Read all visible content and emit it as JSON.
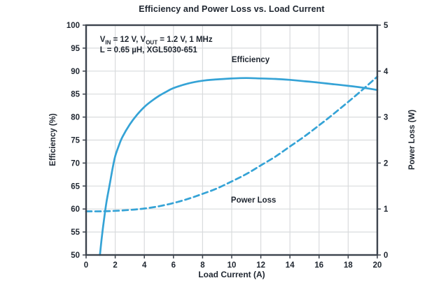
{
  "chart_data": {
    "type": "line",
    "title": "Efficiency and Power Loss vs. Load Current",
    "xlabel": "Load Current (A)",
    "ylabel_left": "Efficiency (%)",
    "ylabel_right": "Power Loss (W)",
    "x_range": [
      0,
      20
    ],
    "y_left_range": [
      50,
      100
    ],
    "y_right_range": [
      0,
      5
    ],
    "x_ticks": [
      0,
      2,
      4,
      6,
      8,
      10,
      12,
      14,
      16,
      18,
      20
    ],
    "y_left_ticks": [
      50,
      55,
      60,
      65,
      70,
      75,
      80,
      85,
      90,
      95,
      100
    ],
    "y_right_ticks": [
      0,
      1,
      2,
      3,
      4,
      5
    ],
    "grid": true,
    "legend_position": "inline-labels",
    "colors": {
      "curve": "#35a3d6",
      "text": "#1f2630",
      "grid": "#d9dbdd",
      "frame": "#3c434d"
    },
    "annotation": {
      "lines": [
        [
          {
            "t": "V"
          },
          {
            "sub": "IN"
          },
          {
            "t": " = 12 V, V"
          },
          {
            "sub": "OUT"
          },
          {
            "t": " = 1.2 V, 1 MHz"
          }
        ],
        [
          {
            "t": "L = 0.65 µH, XGL5030-651"
          }
        ]
      ],
      "pos": {
        "x": 0.95,
        "y": 97.9
      }
    },
    "series": [
      {
        "name": "Efficiency",
        "axis": "left",
        "style": "solid",
        "label": "Efficiency",
        "label_pos": {
          "x": 11.3,
          "y": 92.4
        },
        "points": [
          [
            0.95,
            50
          ],
          [
            1.05,
            53
          ],
          [
            1.2,
            57
          ],
          [
            1.4,
            61.5
          ],
          [
            1.6,
            65
          ],
          [
            1.8,
            68.5
          ],
          [
            2,
            71.5
          ],
          [
            2.25,
            73.8
          ],
          [
            2.5,
            75.7
          ],
          [
            3,
            78.4
          ],
          [
            3.5,
            80.5
          ],
          [
            4,
            82.2
          ],
          [
            4.5,
            83.5
          ],
          [
            5,
            84.6
          ],
          [
            5.5,
            85.5
          ],
          [
            6,
            86.3
          ],
          [
            7,
            87.3
          ],
          [
            8,
            87.9
          ],
          [
            9,
            88.2
          ],
          [
            10,
            88.4
          ],
          [
            11,
            88.5
          ],
          [
            12,
            88.4
          ],
          [
            13,
            88.3
          ],
          [
            14,
            88.1
          ],
          [
            15,
            87.8
          ],
          [
            16,
            87.5
          ],
          [
            17,
            87.15
          ],
          [
            18,
            86.8
          ],
          [
            19,
            86.4
          ],
          [
            20,
            85.9
          ]
        ]
      },
      {
        "name": "Power Loss",
        "axis": "right",
        "style": "dashed",
        "label": "Power Loss",
        "label_pos": {
          "x": 11.5,
          "y": 1.19
        },
        "points": [
          [
            0,
            0.95
          ],
          [
            1,
            0.95
          ],
          [
            2,
            0.96
          ],
          [
            3,
            0.98
          ],
          [
            4,
            1.01
          ],
          [
            5,
            1.06
          ],
          [
            6,
            1.13
          ],
          [
            7,
            1.22
          ],
          [
            8,
            1.33
          ],
          [
            9,
            1.45
          ],
          [
            10,
            1.6
          ],
          [
            11,
            1.76
          ],
          [
            12,
            1.95
          ],
          [
            13,
            2.14
          ],
          [
            14,
            2.36
          ],
          [
            15,
            2.58
          ],
          [
            16,
            2.82
          ],
          [
            17,
            3.07
          ],
          [
            18,
            3.33
          ],
          [
            19,
            3.6
          ],
          [
            20,
            3.88
          ]
        ]
      }
    ]
  }
}
